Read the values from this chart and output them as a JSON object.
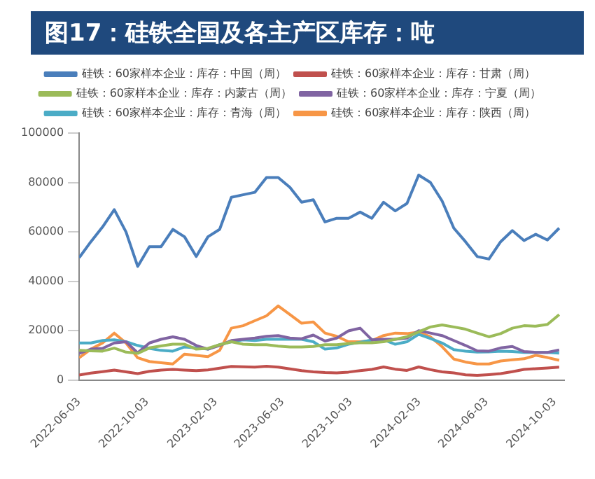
{
  "chart_data": {
    "type": "line",
    "title": "图17：硅铁全国及各主产区库存：吨",
    "x": [
      "2022-06-03",
      "2022-06-24",
      "2022-07-15",
      "2022-08-05",
      "2022-08-26",
      "2022-09-16",
      "2022-10-07",
      "2022-10-28",
      "2022-11-18",
      "2022-12-09",
      "2022-12-30",
      "2023-01-20",
      "2023-02-10",
      "2023-03-03",
      "2023-03-24",
      "2023-04-14",
      "2023-05-05",
      "2023-05-26",
      "2023-06-16",
      "2023-07-07",
      "2023-07-28",
      "2023-08-18",
      "2023-09-08",
      "2023-09-29",
      "2023-10-20",
      "2023-11-10",
      "2023-12-01",
      "2023-12-22",
      "2024-01-12",
      "2024-02-02",
      "2024-02-23",
      "2024-03-15",
      "2024-04-05",
      "2024-04-26",
      "2024-05-17",
      "2024-06-07",
      "2024-06-28",
      "2024-07-19",
      "2024-08-09",
      "2024-08-30",
      "2024-09-20",
      "2024-10-11"
    ],
    "series": [
      {
        "name": "硅铁：60家样本企业：库存：中国（周）",
        "color": "#4a7ebb",
        "values": [
          49500,
          56000,
          62000,
          69000,
          60000,
          46000,
          54000,
          54000,
          61000,
          58000,
          50000,
          58000,
          61000,
          74000,
          75000,
          76000,
          82000,
          82000,
          78000,
          72000,
          73000,
          64000,
          65500,
          65500,
          68000,
          65500,
          72000,
          68500,
          71500,
          83000,
          80000,
          72500,
          61500,
          56000,
          50000,
          49000,
          56000,
          60500,
          56500,
          59000,
          56700,
          61500
        ]
      },
      {
        "name": "硅铁：60家样本企业：库存：甘肃（周）",
        "color": "#c0504d",
        "values": [
          2000,
          2800,
          3400,
          4000,
          3300,
          2600,
          3500,
          4000,
          4300,
          4000,
          3800,
          4100,
          4800,
          5500,
          5400,
          5200,
          5600,
          5200,
          4500,
          3800,
          3300,
          3000,
          2900,
          3200,
          3800,
          4300,
          5300,
          4400,
          3900,
          5300,
          4200,
          3300,
          2900,
          2100,
          1900,
          2200,
          2600,
          3400,
          4300,
          4600,
          4900,
          5200
        ]
      },
      {
        "name": "硅铁：60家样本企业：库存：内蒙古（周）",
        "color": "#9bbb59",
        "values": [
          12000,
          11800,
          11700,
          12900,
          11300,
          10800,
          13000,
          13800,
          14500,
          14500,
          12500,
          12800,
          14300,
          15500,
          14500,
          14300,
          14300,
          13700,
          13400,
          13400,
          13600,
          14300,
          14300,
          14800,
          15100,
          15100,
          15500,
          16500,
          17500,
          19500,
          21500,
          22300,
          21500,
          20600,
          19000,
          17500,
          18800,
          21000,
          22000,
          21800,
          22500,
          26500
        ]
      },
      {
        "name": "硅铁：60家样本企业：库存：宁夏（周）",
        "color": "#8064a2",
        "values": [
          10800,
          12500,
          12800,
          15000,
          15500,
          11000,
          15000,
          16500,
          17500,
          16500,
          14000,
          12500,
          14000,
          16000,
          16500,
          17000,
          17700,
          18000,
          17000,
          16700,
          18200,
          15800,
          17000,
          19900,
          21000,
          16300,
          16500,
          16500,
          17000,
          20000,
          19000,
          18000,
          16000,
          14000,
          11800,
          11700,
          13000,
          13600,
          11500,
          11200,
          11200,
          12200
        ]
      },
      {
        "name": "硅铁：60家样本企业：库存：青海（周）",
        "color": "#4bacc6",
        "values": [
          15000,
          15000,
          16000,
          16300,
          15500,
          14000,
          12800,
          12000,
          11700,
          13400,
          13000,
          12500,
          14300,
          15500,
          16300,
          16000,
          16500,
          16500,
          16500,
          16500,
          15500,
          12500,
          13000,
          14500,
          15300,
          16200,
          16300,
          14500,
          15500,
          18500,
          16800,
          15000,
          12300,
          11700,
          11300,
          11400,
          11700,
          11500,
          11200,
          11200,
          11200,
          10900
        ]
      },
      {
        "name": "硅铁：60家样本企业：库存：陕西（周）",
        "color": "#f79646",
        "values": [
          9000,
          12500,
          15000,
          19000,
          15000,
          9000,
          7500,
          7000,
          6500,
          10500,
          10000,
          9500,
          12000,
          21000,
          22000,
          24000,
          26000,
          30000,
          26500,
          23000,
          23500,
          19000,
          17700,
          15500,
          15500,
          16000,
          18000,
          19000,
          18800,
          19400,
          17500,
          13500,
          8500,
          7300,
          6500,
          6500,
          7700,
          8200,
          8600,
          10000,
          9100,
          8000
        ]
      }
    ],
    "xlim": [
      "2022-06-03",
      "2024-10-20"
    ],
    "xticks": [
      "2022-06-03",
      "2022-10-03",
      "2023-02-03",
      "2023-06-03",
      "2023-10-03",
      "2024-02-03",
      "2024-06-03",
      "2024-10-03"
    ],
    "ylim": [
      0,
      100000
    ],
    "yticks": [
      0,
      20000,
      40000,
      60000,
      80000,
      100000
    ],
    "grid": false,
    "legend": "top",
    "marker": "none",
    "line_style": "solid"
  }
}
